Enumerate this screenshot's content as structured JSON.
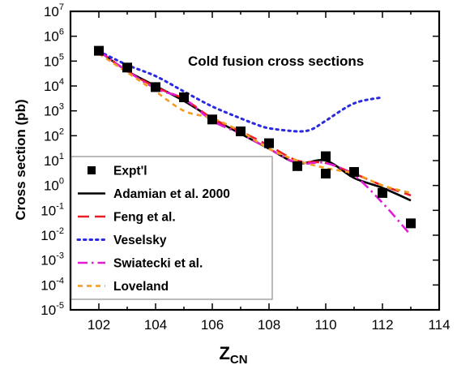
{
  "chart_data": {
    "type": "line",
    "title": "",
    "annotation": "Cold fusion cross sections",
    "xlabel_main": "Z",
    "xlabel_sub": "CN",
    "ylabel": "Cross section (pb)",
    "xlim": [
      101,
      114
    ],
    "ylim_exponents": [
      -5,
      7
    ],
    "yscale": "log",
    "x_ticks": [
      102,
      104,
      106,
      108,
      110,
      112,
      114
    ],
    "y_tick_base": "10",
    "y_tick_exponents": [
      "-5",
      "-4",
      "-3",
      "-2",
      "-1",
      "0",
      "1",
      "2",
      "3",
      "4",
      "5",
      "6",
      "7"
    ],
    "legend_position": "lower-left",
    "series": [
      {
        "name": "Expt'l",
        "style": "markers",
        "color": "#000000",
        "x": [
          102,
          103,
          104,
          105,
          106,
          107,
          108,
          109,
          110,
          110,
          111,
          112,
          113
        ],
        "y": [
          260000,
          55000,
          9000,
          3500,
          450,
          150,
          50,
          6,
          15,
          3,
          3.5,
          0.5,
          0.03
        ]
      },
      {
        "name": "Adamian et al. 2000",
        "style": "solid",
        "color": "#000000",
        "x": [
          102,
          103,
          104,
          105,
          106,
          107,
          108,
          109,
          110,
          111,
          112,
          113
        ],
        "y": [
          250000,
          40000,
          10000,
          2500,
          500,
          120,
          30,
          8,
          10,
          2,
          0.8,
          0.25
        ]
      },
      {
        "name": "Feng et al.",
        "style": "long-dash",
        "color": "#ee1c25",
        "x": [
          102,
          103,
          104,
          105,
          106,
          107,
          108,
          109,
          110,
          111,
          112,
          113
        ],
        "y": [
          260000,
          40000,
          9000,
          3000,
          500,
          150,
          40,
          10,
          8,
          3,
          1,
          0.4
        ]
      },
      {
        "name": "Veselsky",
        "style": "dotted",
        "color": "#2a2ae0",
        "x": [
          102,
          103,
          104,
          105,
          106,
          107,
          107.5,
          108,
          109,
          109.5,
          110,
          111,
          112
        ],
        "y": [
          250000,
          70000,
          25000,
          6000,
          1500,
          500,
          300,
          200,
          150,
          180,
          400,
          2000,
          3500
        ]
      },
      {
        "name": "Swiatecki et al.",
        "style": "dash-dot",
        "color": "#e21bd6",
        "x": [
          102,
          103,
          104,
          105,
          106,
          107,
          108,
          109,
          110,
          111,
          112,
          113
        ],
        "y": [
          250000,
          40000,
          8000,
          3000,
          400,
          120,
          30,
          8,
          8,
          2.5,
          0.2,
          0.01
        ]
      },
      {
        "name": "Loveland",
        "style": "short-dash",
        "color": "#f39c1e",
        "x": [
          102,
          103,
          104,
          105,
          106,
          107,
          108,
          109,
          110,
          111,
          112,
          113
        ],
        "y": [
          200000,
          35000,
          6000,
          1000,
          500,
          150,
          30,
          10,
          5,
          3,
          1,
          0.5
        ]
      }
    ]
  }
}
